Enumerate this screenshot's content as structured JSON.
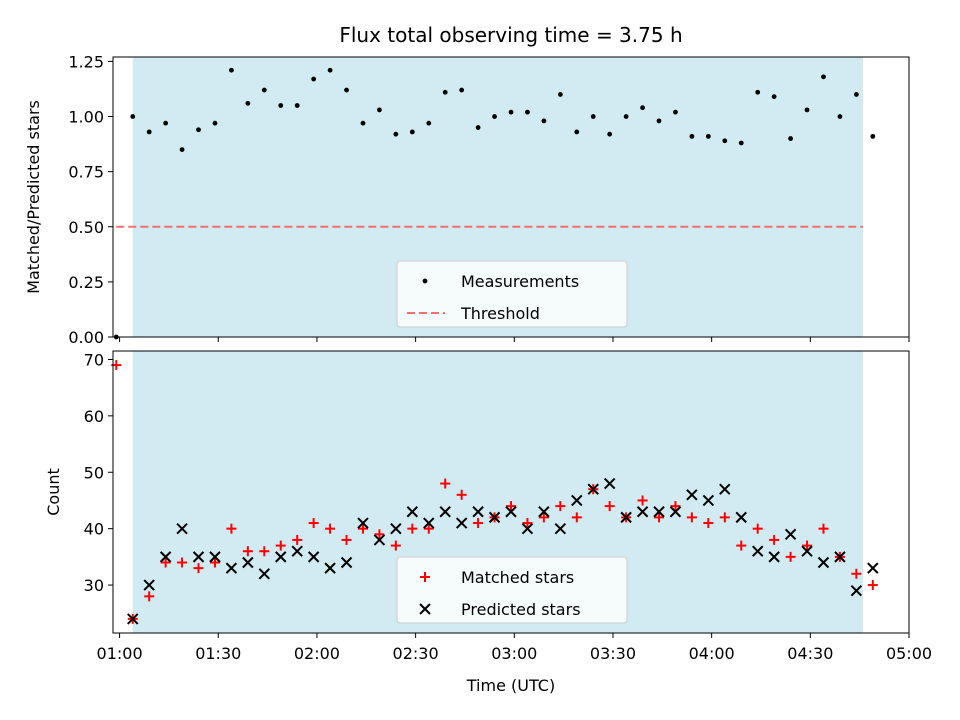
{
  "chart_data": {
    "title": "Flux total observing time = 3.75 h",
    "xlabel": "Time (UTC)",
    "x_unit": "HH:MM",
    "xlim": [
      "00:58",
      "05:00"
    ],
    "x_ticks": [
      "01:00",
      "01:30",
      "02:00",
      "02:30",
      "03:00",
      "03:30",
      "04:00",
      "04:30",
      "05:00"
    ],
    "shaded_region": {
      "start": "01:04",
      "end": "04:46",
      "color": "#add8e6"
    },
    "panels": [
      {
        "type": "scatter",
        "ylabel": "Matched/Predicted stars",
        "ylim": [
          0,
          1.27
        ],
        "y_ticks": [
          "0.00",
          "0.25",
          "0.50",
          "0.75",
          "1.00",
          "1.25"
        ],
        "legend": {
          "placement": "lower-center",
          "entries": [
            "Measurements",
            "Threshold"
          ]
        },
        "threshold": {
          "name": "Threshold",
          "value": 0.5,
          "x_start": "00:59",
          "x_end": "04:46",
          "color": "#f07070"
        },
        "series": [
          {
            "name": "Measurements",
            "color": "#000000",
            "points": [
              [
                "00:59",
                0.0
              ],
              [
                "01:04",
                1.0
              ],
              [
                "01:09",
                0.93
              ],
              [
                "01:14",
                0.97
              ],
              [
                "01:19",
                0.85
              ],
              [
                "01:24",
                0.94
              ],
              [
                "01:29",
                0.97
              ],
              [
                "01:34",
                1.21
              ],
              [
                "01:39",
                1.06
              ],
              [
                "01:44",
                1.12
              ],
              [
                "01:49",
                1.05
              ],
              [
                "01:54",
                1.05
              ],
              [
                "01:59",
                1.17
              ],
              [
                "02:04",
                1.21
              ],
              [
                "02:09",
                1.12
              ],
              [
                "02:14",
                0.97
              ],
              [
                "02:19",
                1.03
              ],
              [
                "02:24",
                0.92
              ],
              [
                "02:29",
                0.93
              ],
              [
                "02:34",
                0.97
              ],
              [
                "02:39",
                1.11
              ],
              [
                "02:44",
                1.12
              ],
              [
                "02:49",
                0.95
              ],
              [
                "02:54",
                1.0
              ],
              [
                "02:59",
                1.02
              ],
              [
                "03:04",
                1.02
              ],
              [
                "03:09",
                0.98
              ],
              [
                "03:14",
                1.1
              ],
              [
                "03:19",
                0.93
              ],
              [
                "03:24",
                1.0
              ],
              [
                "03:29",
                0.92
              ],
              [
                "03:34",
                1.0
              ],
              [
                "03:39",
                1.04
              ],
              [
                "03:44",
                0.98
              ],
              [
                "03:49",
                1.02
              ],
              [
                "03:54",
                0.91
              ],
              [
                "03:59",
                0.91
              ],
              [
                "04:04",
                0.89
              ],
              [
                "04:09",
                0.88
              ],
              [
                "04:14",
                1.11
              ],
              [
                "04:19",
                1.09
              ],
              [
                "04:24",
                0.9
              ],
              [
                "04:29",
                1.03
              ],
              [
                "04:34",
                1.18
              ],
              [
                "04:39",
                1.0
              ],
              [
                "04:44",
                1.1
              ],
              [
                "04:49",
                0.91
              ]
            ]
          }
        ]
      },
      {
        "type": "scatter",
        "ylabel": "Count",
        "ylim": [
          21.5,
          71.5
        ],
        "y_ticks": [
          "30",
          "40",
          "50",
          "60",
          "70"
        ],
        "legend": {
          "placement": "lower-center",
          "entries": [
            "Matched stars",
            "Predicted stars"
          ]
        },
        "series": [
          {
            "name": "Matched stars",
            "marker": "plus",
            "color": "#ff0000",
            "points": [
              [
                "00:59",
                69
              ],
              [
                "01:04",
                24
              ],
              [
                "01:09",
                28
              ],
              [
                "01:14",
                34
              ],
              [
                "01:19",
                34
              ],
              [
                "01:24",
                33
              ],
              [
                "01:29",
                34
              ],
              [
                "01:34",
                40
              ],
              [
                "01:39",
                36
              ],
              [
                "01:44",
                36
              ],
              [
                "01:49",
                37
              ],
              [
                "01:54",
                38
              ],
              [
                "01:59",
                41
              ],
              [
                "02:04",
                40
              ],
              [
                "02:09",
                38
              ],
              [
                "02:14",
                40
              ],
              [
                "02:19",
                39
              ],
              [
                "02:24",
                37
              ],
              [
                "02:29",
                40
              ],
              [
                "02:34",
                40
              ],
              [
                "02:39",
                48
              ],
              [
                "02:44",
                46
              ],
              [
                "02:49",
                41
              ],
              [
                "02:54",
                42
              ],
              [
                "02:59",
                44
              ],
              [
                "03:04",
                41
              ],
              [
                "03:09",
                42
              ],
              [
                "03:14",
                44
              ],
              [
                "03:19",
                42
              ],
              [
                "03:24",
                47
              ],
              [
                "03:29",
                44
              ],
              [
                "03:34",
                42
              ],
              [
                "03:39",
                45
              ],
              [
                "03:44",
                42
              ],
              [
                "03:49",
                44
              ],
              [
                "03:54",
                42
              ],
              [
                "03:59",
                41
              ],
              [
                "04:04",
                42
              ],
              [
                "04:09",
                37
              ],
              [
                "04:14",
                40
              ],
              [
                "04:19",
                38
              ],
              [
                "04:24",
                35
              ],
              [
                "04:29",
                37
              ],
              [
                "04:34",
                40
              ],
              [
                "04:39",
                35
              ],
              [
                "04:44",
                32
              ],
              [
                "04:49",
                30
              ]
            ]
          },
          {
            "name": "Predicted stars",
            "marker": "x",
            "color": "#000000",
            "points": [
              [
                "01:04",
                24
              ],
              [
                "01:09",
                30
              ],
              [
                "01:14",
                35
              ],
              [
                "01:19",
                40
              ],
              [
                "01:24",
                35
              ],
              [
                "01:29",
                35
              ],
              [
                "01:34",
                33
              ],
              [
                "01:39",
                34
              ],
              [
                "01:44",
                32
              ],
              [
                "01:49",
                35
              ],
              [
                "01:54",
                36
              ],
              [
                "01:59",
                35
              ],
              [
                "02:04",
                33
              ],
              [
                "02:09",
                34
              ],
              [
                "02:14",
                41
              ],
              [
                "02:19",
                38
              ],
              [
                "02:24",
                40
              ],
              [
                "02:29",
                43
              ],
              [
                "02:34",
                41
              ],
              [
                "02:39",
                43
              ],
              [
                "02:44",
                41
              ],
              [
                "02:49",
                43
              ],
              [
                "02:54",
                42
              ],
              [
                "02:59",
                43
              ],
              [
                "03:04",
                40
              ],
              [
                "03:09",
                43
              ],
              [
                "03:14",
                40
              ],
              [
                "03:19",
                45
              ],
              [
                "03:24",
                47
              ],
              [
                "03:29",
                48
              ],
              [
                "03:34",
                42
              ],
              [
                "03:39",
                43
              ],
              [
                "03:44",
                43
              ],
              [
                "03:49",
                43
              ],
              [
                "03:54",
                46
              ],
              [
                "03:59",
                45
              ],
              [
                "04:04",
                47
              ],
              [
                "04:09",
                42
              ],
              [
                "04:14",
                36
              ],
              [
                "04:19",
                35
              ],
              [
                "04:24",
                39
              ],
              [
                "04:29",
                36
              ],
              [
                "04:34",
                34
              ],
              [
                "04:39",
                35
              ],
              [
                "04:44",
                29
              ],
              [
                "04:49",
                33
              ]
            ]
          }
        ]
      }
    ]
  }
}
